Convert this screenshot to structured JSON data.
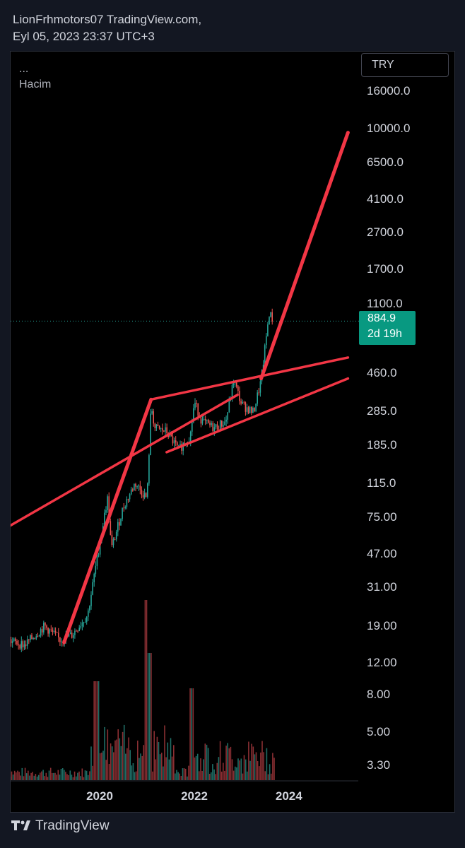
{
  "header": {
    "line1": "LionFrhmotors07 TradingView.com,",
    "line2": "Eyl 05, 2023 23:37 UTC+3"
  },
  "indicators": {
    "dots": "...",
    "volume": "Hacim"
  },
  "currency": "TRY",
  "last_price": {
    "value": "884.9",
    "countdown": "2d 19h"
  },
  "brand": "TradingView",
  "colors": {
    "up": "#26a69a",
    "down": "#ef5350",
    "trendline": "#f23645",
    "badge": "#089981"
  },
  "chart_data": {
    "type": "candlestick",
    "y_scale": "log",
    "ylim": [
      2.8,
      20000
    ],
    "y_ticks": [
      "16000.0",
      "10000.0",
      "6500.0",
      "4100.0",
      "2700.0",
      "1700.0",
      "1100.0",
      "460.0",
      "285.0",
      "185.0",
      "115.0",
      "75.00",
      "47.00",
      "31.00",
      "19.00",
      "12.00",
      "8.00",
      "5.00",
      "3.30"
    ],
    "x_ticks": [
      "2020",
      "2022",
      "2024"
    ],
    "price_path": [
      [
        "2018-01-01",
        16
      ],
      [
        "2018-06-01",
        15
      ],
      [
        "2018-11-01",
        19
      ],
      [
        "2019-03-01",
        16
      ],
      [
        "2019-06-01",
        17
      ],
      [
        "2019-10-01",
        22
      ],
      [
        "2019-12-01",
        40
      ],
      [
        "2020-03-01",
        95
      ],
      [
        "2020-04-01",
        50
      ],
      [
        "2020-07-01",
        85
      ],
      [
        "2020-10-01",
        115
      ],
      [
        "2021-01-01",
        95
      ],
      [
        "2021-02-01",
        310
      ],
      [
        "2021-03-01",
        230
      ],
      [
        "2021-06-01",
        220
      ],
      [
        "2021-09-01",
        175
      ],
      [
        "2021-12-01",
        210
      ],
      [
        "2022-01-01",
        320
      ],
      [
        "2022-03-01",
        250
      ],
      [
        "2022-06-01",
        230
      ],
      [
        "2022-09-01",
        250
      ],
      [
        "2022-11-01",
        420
      ],
      [
        "2023-01-01",
        310
      ],
      [
        "2023-04-01",
        280
      ],
      [
        "2023-06-01",
        420
      ],
      [
        "2023-07-01",
        640
      ],
      [
        "2023-08-01",
        980
      ],
      [
        "2023-09-05",
        884.9
      ]
    ],
    "volume_bars": 180,
    "trendlines": [
      {
        "from": [
          "2019-04-01",
          15.5
        ],
        "to": [
          "2021-02-01",
          330
        ]
      },
      {
        "from": [
          "2021-02-01",
          330
        ],
        "to": [
          "2023-06-01",
          430
        ],
        "extend_to": [
          "2025-04-01",
          560
        ]
      },
      {
        "from": [
          "2021-06-01",
          170
        ],
        "to": [
          "2023-04-01",
          250
        ],
        "extend_to": [
          "2025-04-01",
          430
        ]
      },
      {
        "from": [
          "2018-01-01",
          65
        ],
        "to": [
          "2021-02-01",
          280
        ],
        "extend_to": [
          "2022-12-01",
          350
        ]
      },
      {
        "from": [
          "2023-06-01",
          430
        ],
        "to": [
          "2025-04-01",
          9500
        ]
      }
    ]
  }
}
